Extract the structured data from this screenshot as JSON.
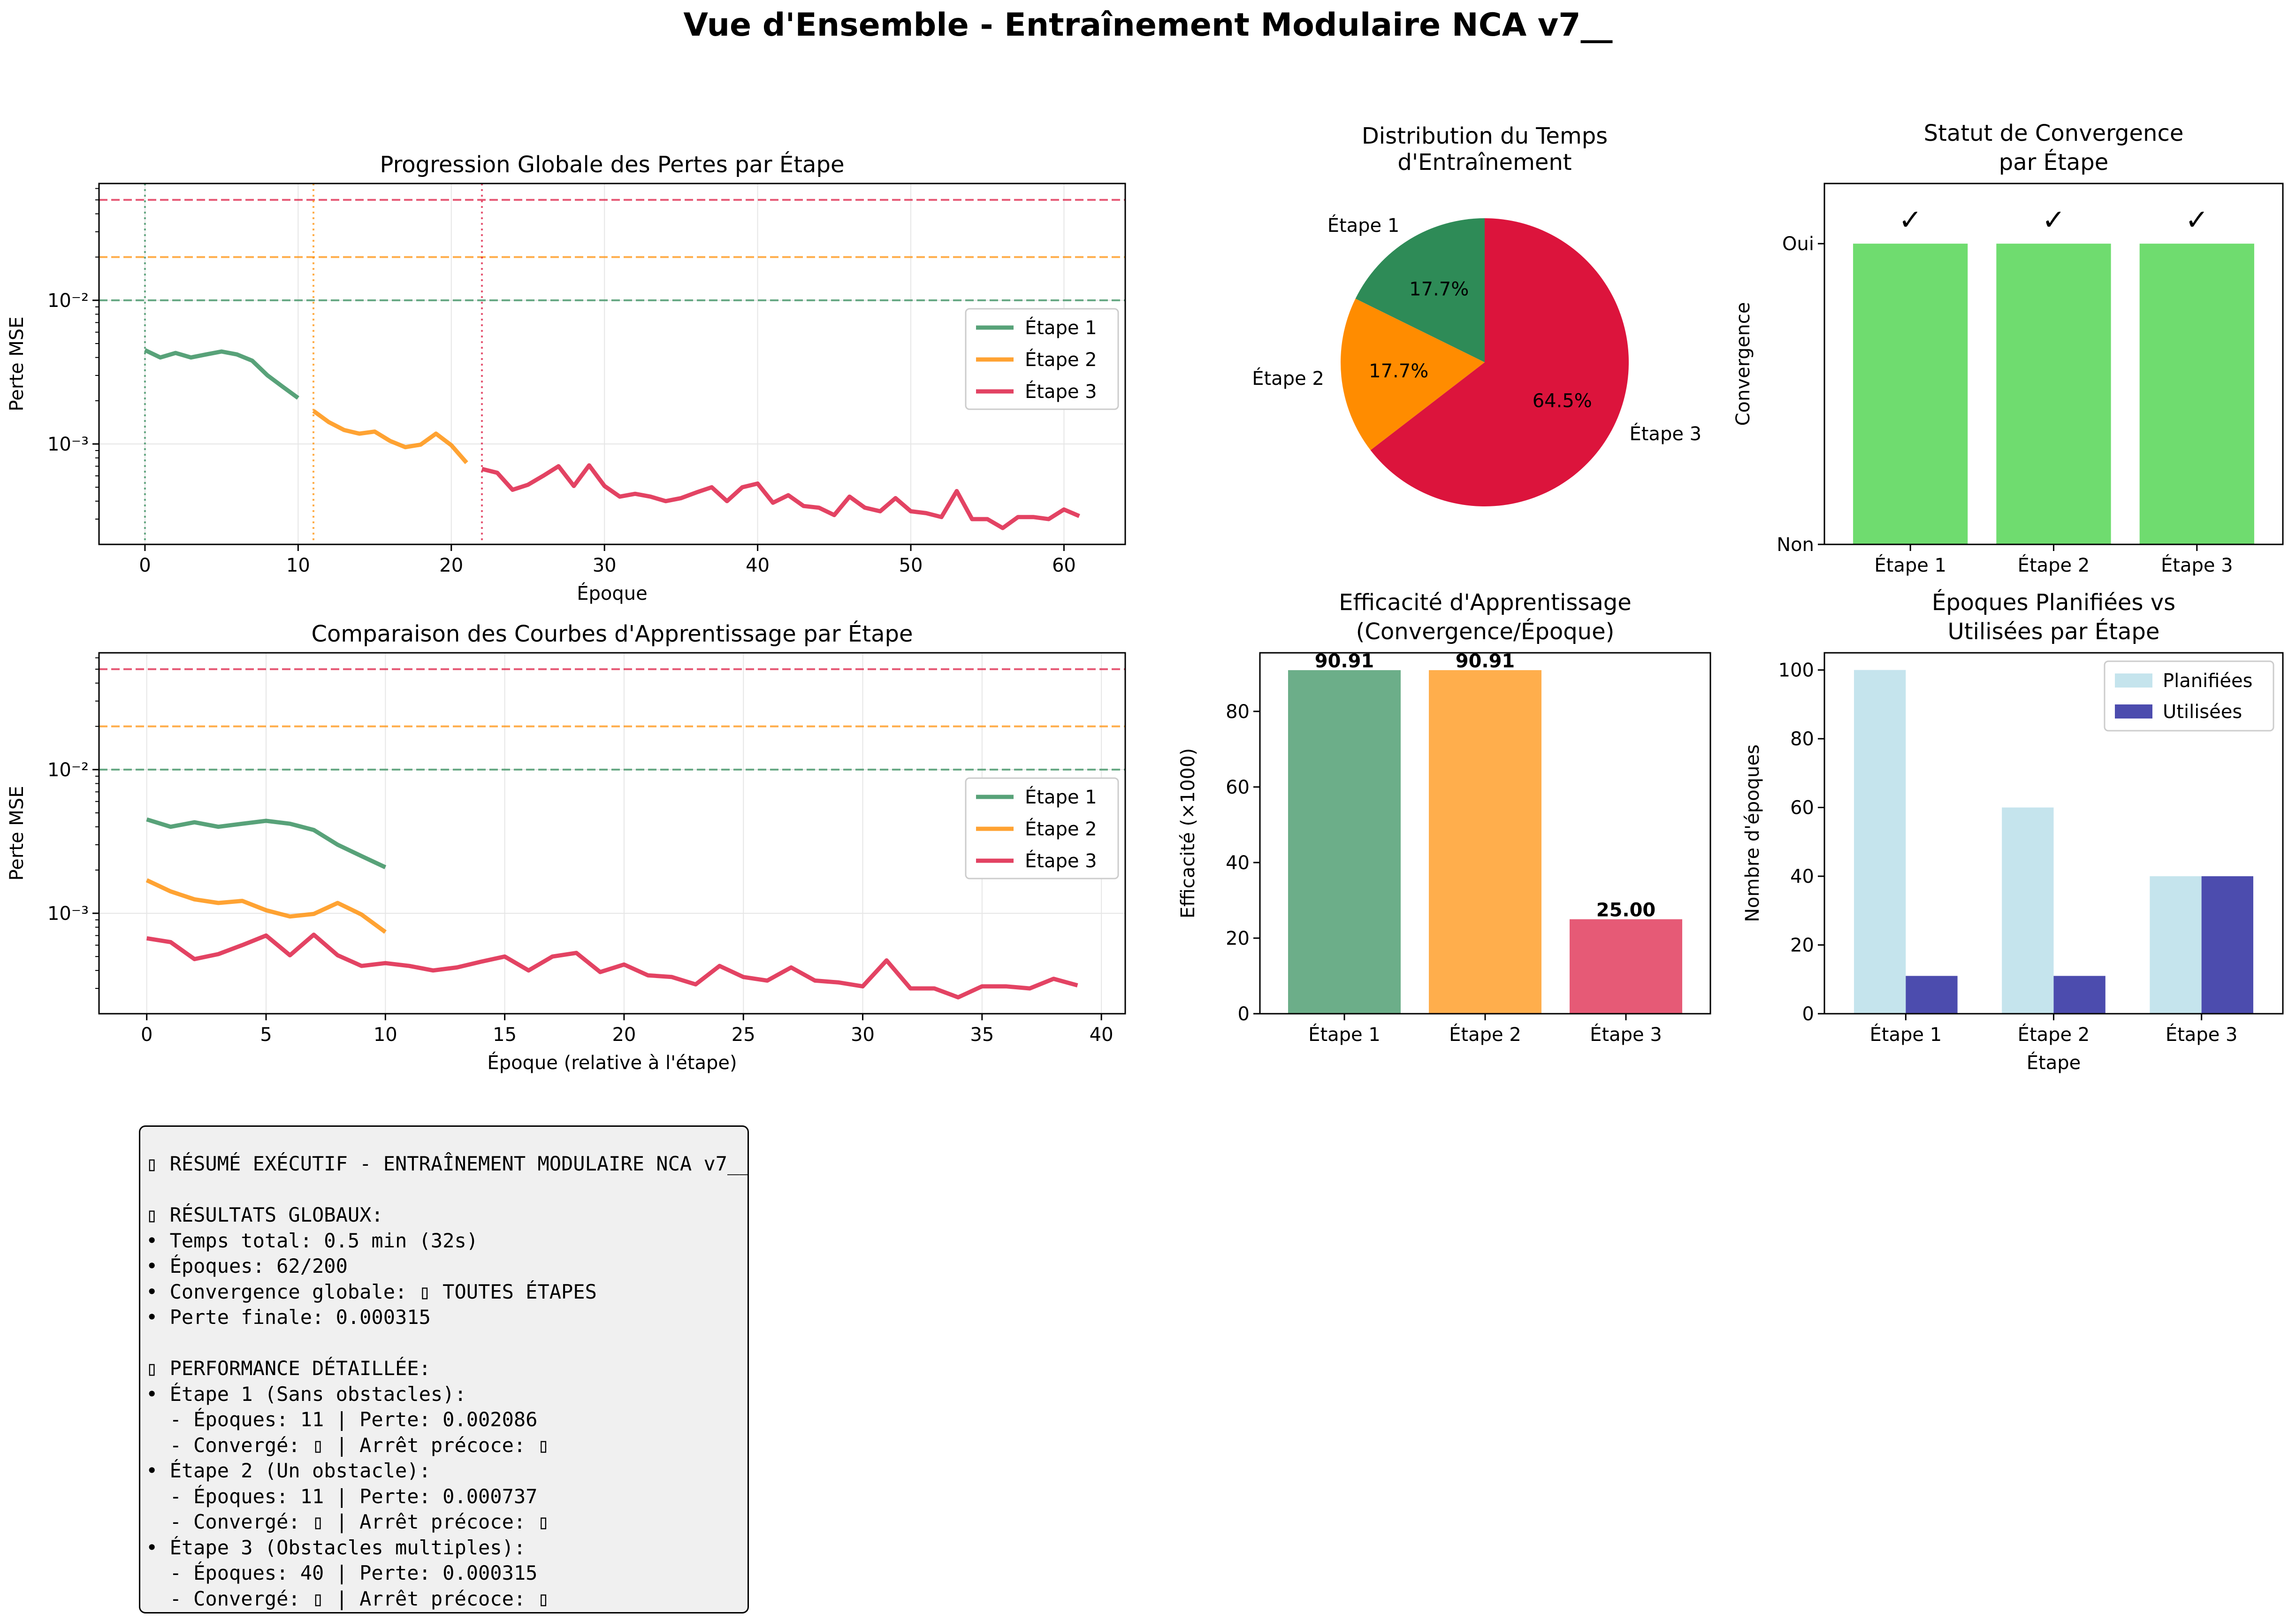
{
  "suptitle": "Vue d'Ensemble - Entraînement Modulaire NCA v7__",
  "colors": {
    "stage1": "#2e8b57",
    "stage2": "#ff8c00",
    "stage3": "#dc143c",
    "converged": "#6fdc6f",
    "planned": "#add8e6",
    "used": "#00008b",
    "summary_bg": "#f0f0f0"
  },
  "chart_data": [
    {
      "id": "loss_progression",
      "type": "line",
      "title": "Progression Globale des Pertes par Étape",
      "xlabel": "Époque",
      "ylabel": "Perte MSE",
      "yscale": "log",
      "xlim": [
        -3,
        64
      ],
      "ylim": [
        0.0002,
        0.065
      ],
      "xticks": [
        0,
        10,
        20,
        30,
        40,
        50,
        60
      ],
      "yticks": [
        {
          "value": 0.001,
          "label": "10⁻³"
        },
        {
          "value": 0.01,
          "label": "10⁻²"
        }
      ],
      "grid": true,
      "legend": "center-right",
      "thresholds": [
        {
          "value": 0.01,
          "color": "#2e8b57"
        },
        {
          "value": 0.02,
          "color": "#ff8c00"
        },
        {
          "value": 0.05,
          "color": "#dc143c"
        }
      ],
      "stage_starts": [
        {
          "x": 0,
          "color": "#2e8b57"
        },
        {
          "x": 11,
          "color": "#ff8c00"
        },
        {
          "x": 22,
          "color": "#dc143c"
        }
      ],
      "series": [
        {
          "name": "Étape 1",
          "color": "#2e8b57",
          "x": [
            0,
            1,
            2,
            3,
            4,
            5,
            6,
            7,
            8,
            9,
            10
          ],
          "y": [
            0.0045,
            0.004,
            0.0043,
            0.004,
            0.0042,
            0.0044,
            0.0042,
            0.0038,
            0.003,
            0.0025,
            0.00209
          ]
        },
        {
          "name": "Étape 2",
          "color": "#ff8c00",
          "x": [
            11,
            12,
            13,
            14,
            15,
            16,
            17,
            18,
            19,
            20,
            21
          ],
          "y": [
            0.0017,
            0.00142,
            0.00125,
            0.00118,
            0.00122,
            0.00105,
            0.00095,
            0.00099,
            0.00118,
            0.00098,
            0.00074
          ]
        },
        {
          "name": "Étape 3",
          "color": "#dc143c",
          "x": [
            22,
            23,
            24,
            25,
            26,
            27,
            28,
            29,
            30,
            31,
            32,
            33,
            34,
            35,
            36,
            37,
            38,
            39,
            40,
            41,
            42,
            43,
            44,
            45,
            46,
            47,
            48,
            49,
            50,
            51,
            52,
            53,
            54,
            55,
            56,
            57,
            58,
            59,
            60,
            61
          ],
          "y": [
            0.00067,
            0.00063,
            0.00048,
            0.00052,
            0.0006,
            0.0007,
            0.00051,
            0.00071,
            0.00051,
            0.00043,
            0.00045,
            0.00043,
            0.0004,
            0.00042,
            0.00046,
            0.0005,
            0.0004,
            0.0005,
            0.00053,
            0.00039,
            0.00044,
            0.00037,
            0.00036,
            0.00032,
            0.00043,
            0.00036,
            0.00034,
            0.00042,
            0.00034,
            0.00033,
            0.00031,
            0.00047,
            0.0003,
            0.0003,
            0.00026,
            0.00031,
            0.00031,
            0.0003,
            0.00035,
            0.000315
          ]
        }
      ]
    },
    {
      "id": "curve_comparison",
      "type": "line",
      "title": "Comparaison des Courbes d'Apprentissage par Étape",
      "xlabel": "Époque (relative à l'étape)",
      "ylabel": "Perte MSE",
      "yscale": "log",
      "xlim": [
        -2,
        41
      ],
      "ylim": [
        0.0002,
        0.065
      ],
      "xticks": [
        0,
        5,
        10,
        15,
        20,
        25,
        30,
        35,
        40
      ],
      "yticks": [
        {
          "value": 0.001,
          "label": "10⁻³"
        },
        {
          "value": 0.01,
          "label": "10⁻²"
        }
      ],
      "grid": true,
      "legend": "center-right",
      "thresholds": [
        {
          "value": 0.01,
          "color": "#2e8b57"
        },
        {
          "value": 0.02,
          "color": "#ff8c00"
        },
        {
          "value": 0.05,
          "color": "#dc143c"
        }
      ],
      "series": [
        {
          "name": "Étape 1",
          "color": "#2e8b57",
          "x": [
            0,
            1,
            2,
            3,
            4,
            5,
            6,
            7,
            8,
            9,
            10
          ],
          "y": [
            0.0045,
            0.004,
            0.0043,
            0.004,
            0.0042,
            0.0044,
            0.0042,
            0.0038,
            0.003,
            0.0025,
            0.00209
          ]
        },
        {
          "name": "Étape 2",
          "color": "#ff8c00",
          "x": [
            0,
            1,
            2,
            3,
            4,
            5,
            6,
            7,
            8,
            9,
            10
          ],
          "y": [
            0.0017,
            0.00142,
            0.00125,
            0.00118,
            0.00122,
            0.00105,
            0.00095,
            0.00099,
            0.00118,
            0.00098,
            0.00074
          ]
        },
        {
          "name": "Étape 3",
          "color": "#dc143c",
          "x": [
            0,
            1,
            2,
            3,
            4,
            5,
            6,
            7,
            8,
            9,
            10,
            11,
            12,
            13,
            14,
            15,
            16,
            17,
            18,
            19,
            20,
            21,
            22,
            23,
            24,
            25,
            26,
            27,
            28,
            29,
            30,
            31,
            32,
            33,
            34,
            35,
            36,
            37,
            38,
            39
          ],
          "y": [
            0.00067,
            0.00063,
            0.00048,
            0.00052,
            0.0006,
            0.0007,
            0.00051,
            0.00071,
            0.00051,
            0.00043,
            0.00045,
            0.00043,
            0.0004,
            0.00042,
            0.00046,
            0.0005,
            0.0004,
            0.0005,
            0.00053,
            0.00039,
            0.00044,
            0.00037,
            0.00036,
            0.00032,
            0.00043,
            0.00036,
            0.00034,
            0.00042,
            0.00034,
            0.00033,
            0.00031,
            0.00047,
            0.0003,
            0.0003,
            0.00026,
            0.00031,
            0.00031,
            0.0003,
            0.00035,
            0.000315
          ]
        }
      ]
    },
    {
      "id": "time_distribution",
      "type": "pie",
      "title": "Distribution du Temps\nd'Entraînement",
      "slices": [
        {
          "label": "Étape 1",
          "value": 17.7,
          "pct": "17.7%",
          "color": "#2e8b57"
        },
        {
          "label": "Étape 2",
          "value": 17.7,
          "pct": "17.7%",
          "color": "#ff8c00"
        },
        {
          "label": "Étape 3",
          "value": 64.5,
          "pct": "64.5%",
          "color": "#dc143c"
        }
      ],
      "startangle": 90
    },
    {
      "id": "convergence_status",
      "type": "bar",
      "title": "Statut de Convergence\npar Étape",
      "ylabel": "Convergence",
      "categories": [
        "Étape 1",
        "Étape 2",
        "Étape 3"
      ],
      "values": [
        1,
        1,
        1
      ],
      "ylim": [
        0,
        1.2
      ],
      "yticks": [
        {
          "value": 0,
          "label": "Non"
        },
        {
          "value": 1,
          "label": "Oui"
        }
      ],
      "annotations": [
        "✓",
        "✓",
        "✓"
      ],
      "color": "#6fdc6f"
    },
    {
      "id": "learning_efficiency",
      "type": "bar",
      "title": "Efficacité d'Apprentissage\n(Convergence/Époque)",
      "ylabel": "Efficacité (×1000)",
      "categories": [
        "Étape 1",
        "Étape 2",
        "Étape 3"
      ],
      "values": [
        90.91,
        90.91,
        25.0
      ],
      "value_labels": [
        "90.91",
        "90.91",
        "25.00"
      ],
      "ylim": [
        0,
        95.5
      ],
      "yticks": [
        0,
        20,
        40,
        60,
        80
      ],
      "colors": [
        "#2e8b57",
        "#ff8c00",
        "#dc143c"
      ]
    },
    {
      "id": "epochs_planned_vs_used",
      "type": "bar",
      "title": "Époques Planifiées vs\nUtilisées par Étape",
      "xlabel": "Étape",
      "ylabel": "Nombre d'époques",
      "categories": [
        "Étape 1",
        "Étape 2",
        "Étape 3"
      ],
      "series": [
        {
          "name": "Planifiées",
          "values": [
            100,
            60,
            40
          ],
          "color": "#add8e6"
        },
        {
          "name": "Utilisées",
          "values": [
            11,
            11,
            40
          ],
          "color": "#00008b"
        }
      ],
      "ylim": [
        0,
        105
      ],
      "yticks": [
        0,
        20,
        40,
        60,
        80,
        100
      ],
      "legend": "top-right"
    }
  ],
  "summary": {
    "lines": [
      "▯ RÉSUMÉ EXÉCUTIF - ENTRAÎNEMENT MODULAIRE NCA v7__",
      "",
      "▯ RÉSULTATS GLOBAUX:",
      "• Temps total: 0.5 min (32s)",
      "• Époques: 62/200",
      "• Convergence globale: ▯ TOUTES ÉTAPES",
      "• Perte finale: 0.000315",
      "",
      "▯ PERFORMANCE DÉTAILLÉE:",
      "• Étape 1 (Sans obstacles):",
      "  - Époques: 11 | Perte: 0.002086",
      "  - Convergé: ▯ | Arrêt précoce: ▯",
      "• Étape 2 (Un obstacle):",
      "  - Époques: 11 | Perte: 0.000737",
      "  - Convergé: ▯ | Arrêt précoce: ▯",
      "• Étape 3 (Obstacles multiples):",
      "  - Époques: 40 | Perte: 0.000315",
      "  - Convergé: ▯ | Arrêt précoce: ▯"
    ]
  }
}
